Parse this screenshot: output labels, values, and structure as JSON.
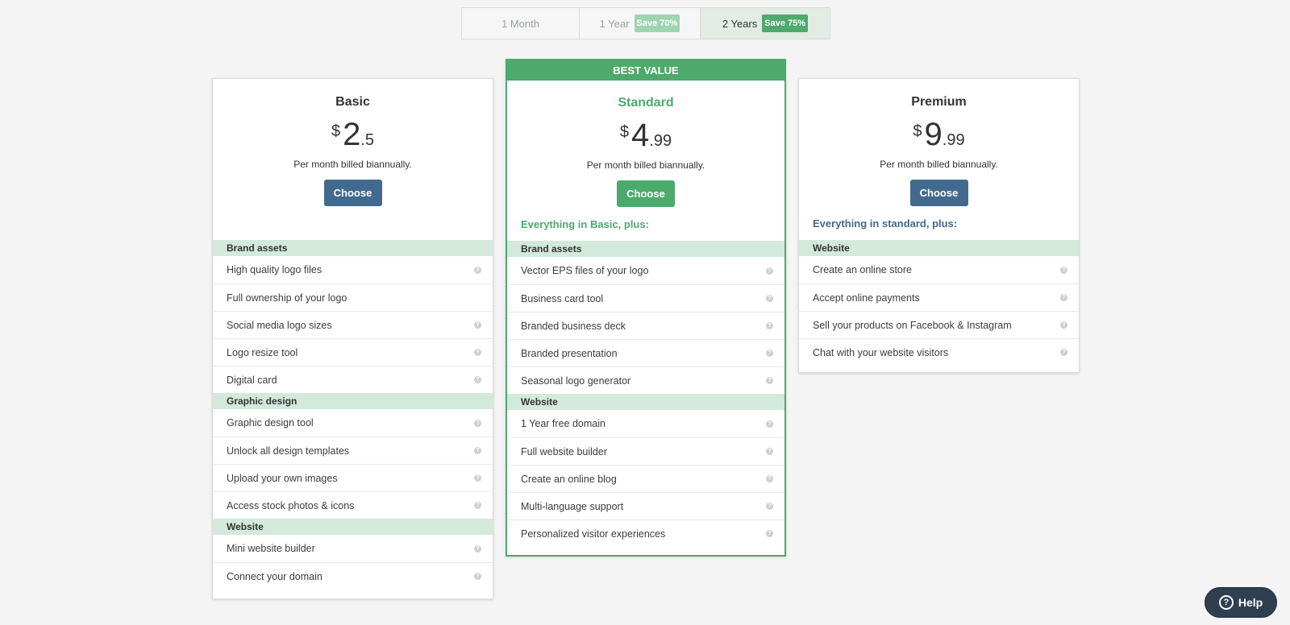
{
  "billing": {
    "options": [
      {
        "label": "1 Month",
        "badge": null
      },
      {
        "label": "1 Year",
        "badge": "Save 70%"
      },
      {
        "label": "2 Years",
        "badge": "Save 75%"
      }
    ],
    "selected": "2 Years"
  },
  "plans": {
    "basic": {
      "name": "Basic",
      "currency": "$",
      "price_int": "2",
      "price_dec": ".5",
      "billed": "Per month billed biannually.",
      "choose": "Choose",
      "sections": [
        {
          "title": "Brand assets",
          "features": [
            {
              "label": "High quality logo files",
              "info": true
            },
            {
              "label": "Full ownership of your logo",
              "info": false
            },
            {
              "label": "Social media logo sizes",
              "info": true
            },
            {
              "label": "Logo resize tool",
              "info": true
            },
            {
              "label": "Digital card",
              "info": true
            }
          ]
        },
        {
          "title": "Graphic design",
          "features": [
            {
              "label": "Graphic design tool",
              "info": true
            },
            {
              "label": "Unlock all design templates",
              "info": true
            },
            {
              "label": "Upload your own images",
              "info": true
            },
            {
              "label": "Access stock photos & icons",
              "info": true
            }
          ]
        },
        {
          "title": "Website",
          "features": [
            {
              "label": "Mini website builder",
              "info": true
            },
            {
              "label": "Connect your domain",
              "info": true
            }
          ]
        }
      ]
    },
    "standard": {
      "banner": "BEST VALUE",
      "name": "Standard",
      "currency": "$",
      "price_int": "4",
      "price_dec": ".99",
      "billed": "Per month billed biannually.",
      "choose": "Choose",
      "plus": "Everything in Basic, plus:",
      "sections": [
        {
          "title": "Brand assets",
          "features": [
            {
              "label": "Vector EPS files of your logo",
              "info": true
            },
            {
              "label": "Business card tool",
              "info": true
            },
            {
              "label": "Branded business deck",
              "info": true
            },
            {
              "label": "Branded presentation",
              "info": true
            },
            {
              "label": "Seasonal logo generator",
              "info": true
            }
          ]
        },
        {
          "title": "Website",
          "features": [
            {
              "label": "1 Year free domain",
              "info": true
            },
            {
              "label": "Full website builder",
              "info": true
            },
            {
              "label": "Create an online blog",
              "info": true
            },
            {
              "label": "Multi-language support",
              "info": true
            },
            {
              "label": "Personalized visitor experiences",
              "info": true
            }
          ]
        }
      ]
    },
    "premium": {
      "name": "Premium",
      "currency": "$",
      "price_int": "9",
      "price_dec": ".99",
      "billed": "Per month billed biannually.",
      "choose": "Choose",
      "plus": "Everything in standard, plus:",
      "sections": [
        {
          "title": "Website",
          "features": [
            {
              "label": "Create an online store",
              "info": true
            },
            {
              "label": "Accept online payments",
              "info": true
            },
            {
              "label": "Sell your products on Facebook & Instagram",
              "info": true
            },
            {
              "label": "Chat with your website visitors",
              "info": true
            }
          ]
        }
      ]
    }
  },
  "info_icon_glyph": "?",
  "help": {
    "label": "Help",
    "icon": "question-circle-icon",
    "glyph": "?"
  },
  "colors": {
    "brand_green": "#4caa6c",
    "brand_blue": "#426a8e",
    "section_bg": "#d3e9dc"
  }
}
